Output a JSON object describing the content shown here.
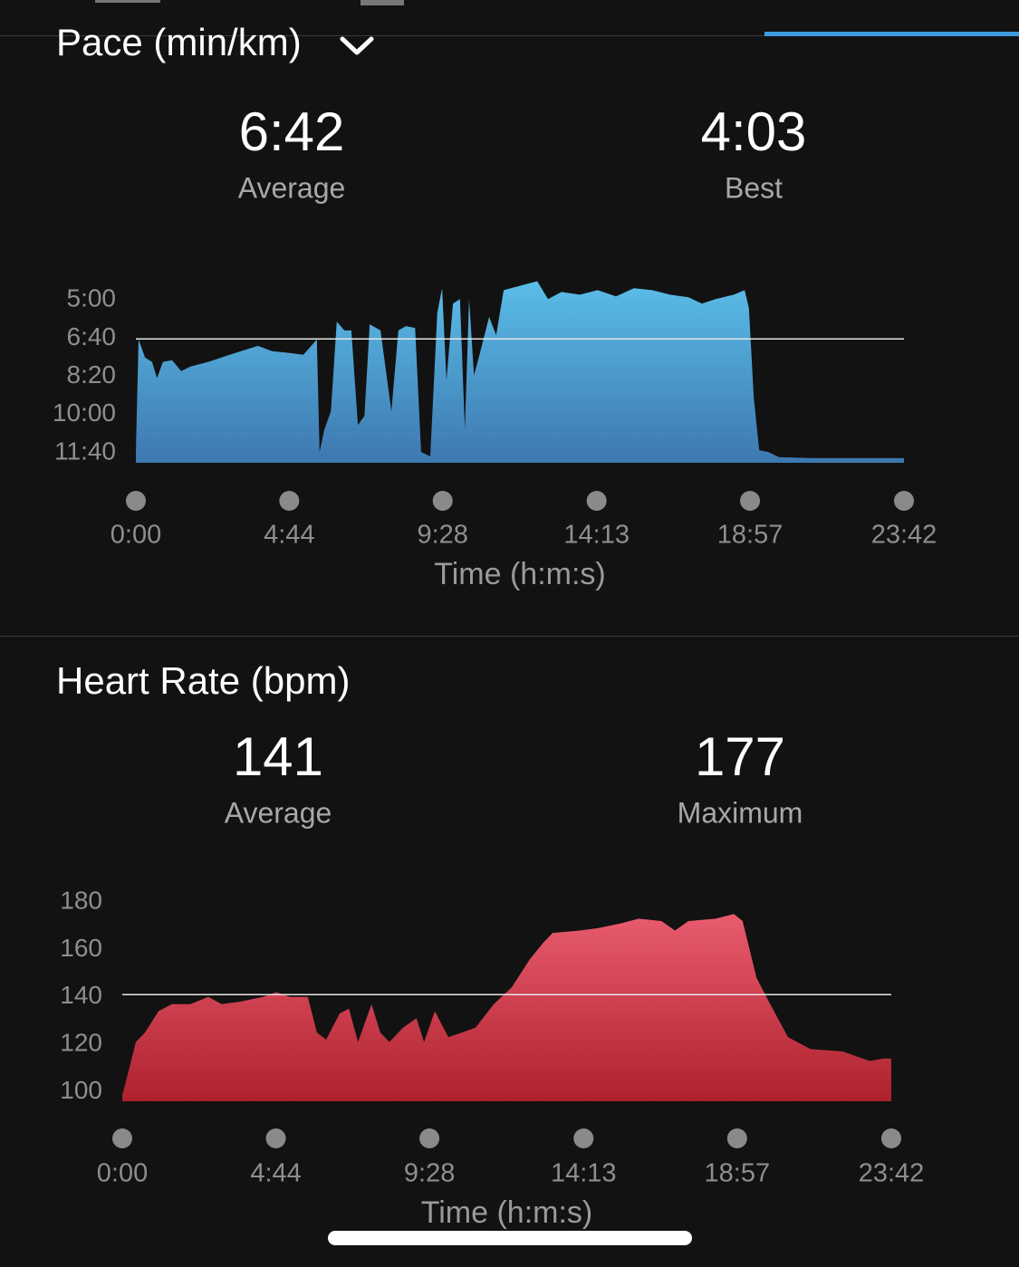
{
  "chart_data": [
    {
      "type": "area",
      "title": "Pace (min/km)",
      "stats": [
        {
          "value": 6.7,
          "label": "6:42",
          "name": "Average"
        },
        {
          "value": 4.05,
          "label": "4:03",
          "name": "Best"
        }
      ],
      "xlabel": "Time (h:m:s)",
      "x": [
        0,
        5,
        17,
        30,
        39,
        50,
        67,
        84,
        101,
        134,
        184,
        226,
        252,
        285,
        310,
        335,
        340,
        349,
        361,
        372,
        386,
        399,
        411,
        423,
        433,
        453,
        473,
        486,
        500,
        517,
        528,
        545,
        558,
        567,
        575,
        587,
        600,
        609,
        617,
        626,
        637,
        654,
        667,
        681,
        713,
        743,
        763,
        788,
        822,
        855,
        889,
        922,
        956,
        989,
        1023,
        1048,
        1073,
        1107,
        1127,
        1135,
        1144,
        1154,
        1171,
        1191,
        1258,
        1422
      ],
      "values": [
        11.63,
        6.72,
        7.51,
        7.7,
        8.41,
        7.7,
        7.63,
        8.1,
        7.9,
        7.7,
        7.31,
        7.0,
        7.23,
        7.31,
        7.39,
        6.72,
        11.63,
        10.65,
        9.86,
        5.94,
        6.33,
        6.33,
        10.45,
        10.06,
        6.06,
        6.33,
        9.86,
        6.33,
        6.14,
        6.22,
        11.63,
        11.82,
        5.55,
        4.49,
        8.49,
        5.16,
        4.96,
        10.65,
        4.96,
        8.29,
        7.31,
        5.74,
        6.53,
        4.57,
        4.37,
        4.18,
        4.96,
        4.65,
        4.77,
        4.57,
        4.84,
        4.49,
        4.57,
        4.77,
        4.88,
        5.16,
        4.96,
        4.77,
        4.57,
        5.35,
        9.27,
        11.55,
        11.63,
        11.86,
        11.9,
        11.9
      ],
      "gradient": [
        "#5bbde9",
        "#3d78b0"
      ],
      "xlim": [
        0,
        1422
      ],
      "xticks": [
        {
          "value": 0,
          "label": "0:00"
        },
        {
          "value": 284,
          "label": "4:44"
        },
        {
          "value": 568,
          "label": "9:28"
        },
        {
          "value": 853,
          "label": "14:13"
        },
        {
          "value": 1137,
          "label": "18:57"
        },
        {
          "value": 1422,
          "label": "23:42"
        }
      ],
      "ylim": [
        12.1,
        4.2
      ],
      "yticks": [
        {
          "value": 5,
          "label": "5:00"
        },
        {
          "value": 6.667,
          "label": "6:40"
        },
        {
          "value": 8.333,
          "label": "8:20"
        },
        {
          "value": 10,
          "label": "10:00"
        },
        {
          "value": 11.667,
          "label": "11:40"
        }
      ]
    },
    {
      "type": "area",
      "title": "Heart Rate (bpm)",
      "stats": [
        {
          "value": 141,
          "label": "141",
          "name": "Average"
        },
        {
          "value": 177,
          "label": "177",
          "name": "Maximum"
        }
      ],
      "xlabel": "Time (h:m:s)",
      "x": [
        0,
        13,
        25,
        42,
        67,
        92,
        126,
        159,
        184,
        218,
        260,
        285,
        310,
        343,
        360,
        377,
        402,
        419,
        436,
        461,
        477,
        494,
        519,
        544,
        558,
        578,
        603,
        628,
        653,
        687,
        720,
        754,
        779,
        796,
        846,
        879,
        921,
        955,
        997,
        1022,
        1047,
        1097,
        1131,
        1147,
        1173,
        1198,
        1231,
        1273,
        1332,
        1382,
        1407,
        1422
      ],
      "values": [
        98.5,
        110,
        121,
        125,
        134,
        137,
        137,
        140,
        137,
        138,
        140,
        142,
        140,
        140,
        125,
        122,
        133,
        135,
        121,
        137,
        125,
        121,
        127,
        131,
        121,
        134,
        123,
        125,
        127,
        137,
        144,
        156,
        163,
        167,
        168,
        169,
        171,
        173,
        172,
        168,
        172,
        173,
        175,
        172,
        148,
        137,
        123,
        118,
        117,
        113,
        114,
        114
      ],
      "gradient": [
        "#e95c70",
        "#ae212c"
      ],
      "xlim": [
        0,
        1422
      ],
      "xticks": [
        {
          "value": 0,
          "label": "0:00"
        },
        {
          "value": 284,
          "label": "4:44"
        },
        {
          "value": 568,
          "label": "9:28"
        },
        {
          "value": 853,
          "label": "14:13"
        },
        {
          "value": 1137,
          "label": "18:57"
        },
        {
          "value": 1422,
          "label": "23:42"
        }
      ],
      "ylim": [
        96,
        185
      ],
      "yticks": [
        100,
        120,
        140,
        160,
        180
      ]
    }
  ]
}
